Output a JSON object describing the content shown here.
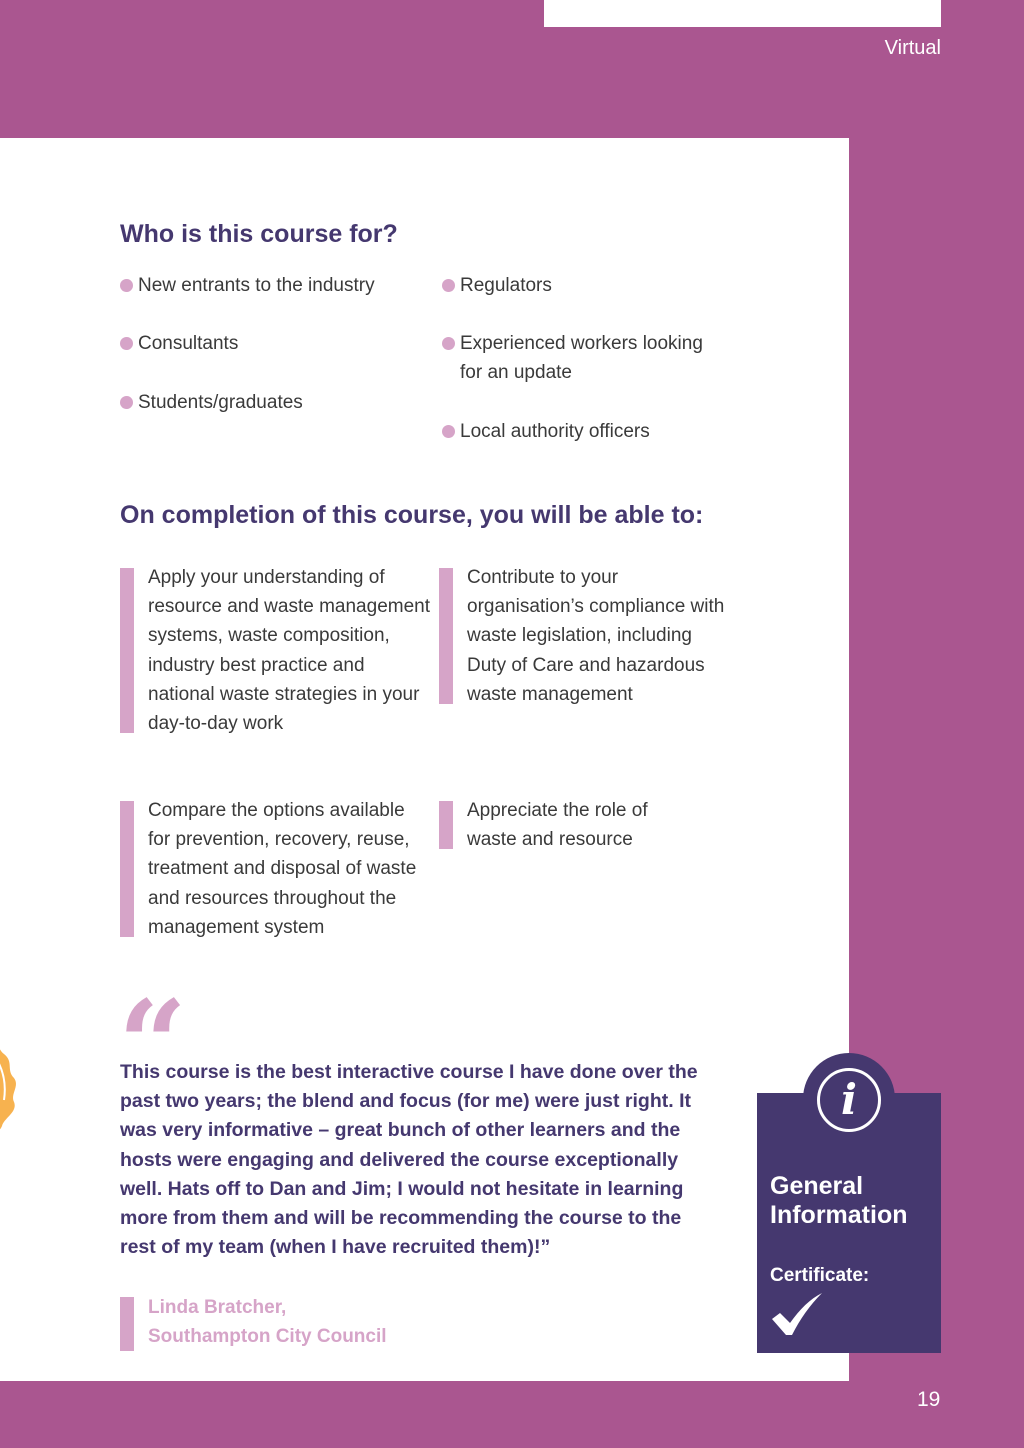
{
  "header": {
    "label": "Virtual"
  },
  "audience": {
    "title": "Who is this course for?",
    "left": [
      "New entrants to the industry",
      "Consultants",
      "Students/graduates"
    ],
    "right": [
      "Regulators",
      "Experienced workers looking for an update",
      "Local authority officers"
    ]
  },
  "outcomes": {
    "title": "On completion of this course, you will be able to:",
    "items": [
      "Apply your understanding of resource and waste management systems, waste composition, industry best practice and national waste strategies in your day-to-day work",
      "Contribute to your organisation’s compliance with waste legislation, including Duty of Care and hazardous waste management",
      "Compare the options available for prevention, recovery, reuse, treatment and disposal of waste and resources throughout the management system",
      "Appreciate the role of waste and resource"
    ]
  },
  "testimonial": {
    "mark": "“",
    "text": "This course is the best interactive course I have done over the past two years; the blend and focus (for me) were just right. It was very informative – great bunch of other learners and the hosts were engaging and delivered the course exceptionally well. Hats off to Dan and Jim; I would not hesitate in learning more from them and will be recommending the course to the rest of my team (when I have recruited them)!”",
    "author": "Linda Bratcher,",
    "org": "Southampton City Council"
  },
  "info": {
    "icon": "info-icon",
    "title": "General Information",
    "certificate_label": "Certificate:",
    "certificate_icon": "checkmark-icon"
  },
  "page_number": "19",
  "colors": {
    "purple": "#aa5690",
    "navy": "#45386f",
    "pink": "#d6a4c8",
    "orange": "#f7b24f"
  }
}
